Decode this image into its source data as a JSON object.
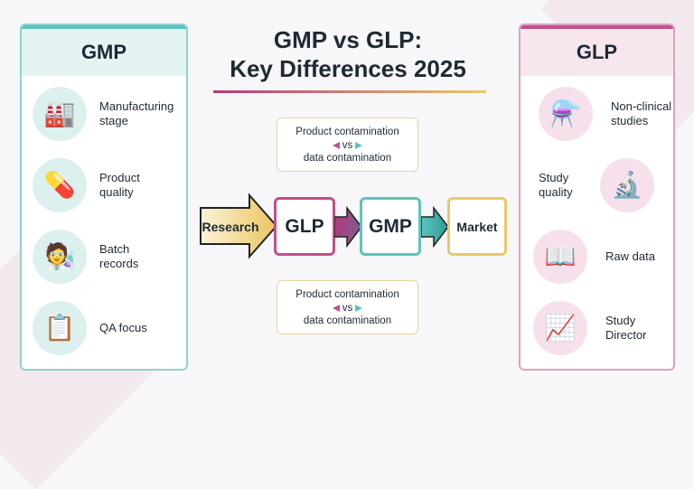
{
  "title": {
    "line1": "GMP vs GLP:",
    "line2": "Key Differences 2025"
  },
  "gmp": {
    "heading": "GMP",
    "items": [
      {
        "label": "Manufacturing stage",
        "icon": "factory-icon"
      },
      {
        "label": "Product quality",
        "icon": "pill-pack-icon"
      },
      {
        "label": "Batch records",
        "icon": "technician-icon"
      },
      {
        "label": "QA focus",
        "icon": "clipboard-check-icon"
      }
    ]
  },
  "glp": {
    "heading": "GLP",
    "items": [
      {
        "label": "Non-clinical studies",
        "icon": "flask-icon"
      },
      {
        "label": "Study quality",
        "icon": "microscope-icon"
      },
      {
        "label": "Raw data",
        "icon": "notebook-icon"
      },
      {
        "label": "Study Director",
        "icon": "chart-magnifier-icon"
      }
    ]
  },
  "flow": {
    "research": "Research",
    "glp": "GLP",
    "gmp": "GMP",
    "market": "Market"
  },
  "callout_top": {
    "line1": "Product contamination",
    "vs": "vs",
    "line2": "data contamination"
  },
  "callout_bottom": {
    "line1": "Product contamination",
    "vs": "vs",
    "line2": "data contamination"
  },
  "colors": {
    "gmp": "#5cc4bd",
    "glp": "#c44f8c",
    "market": "#e9c86a"
  }
}
